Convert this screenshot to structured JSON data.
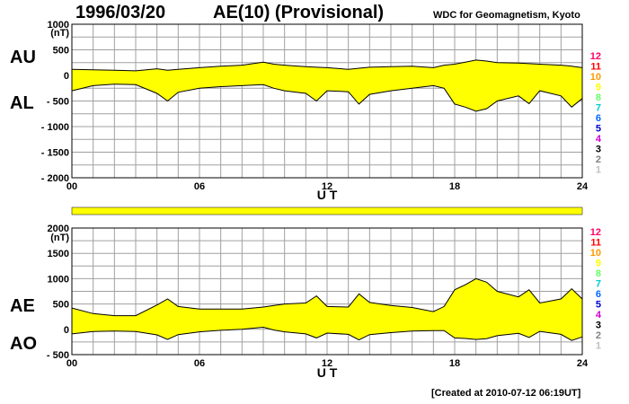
{
  "header": {
    "date": "1996/03/20",
    "title": "AE(10) (Provisional)",
    "source": "WDC for Geomagnetism, Kyoto"
  },
  "footer": {
    "created": "[Created at 2010-07-12 06:19UT]"
  },
  "colors": {
    "fill": "#ffff00",
    "grid": "#a0a0a0",
    "stations": [
      "#c0c0c0",
      "#808080",
      "#000000",
      "#cc00cc",
      "#0000cc",
      "#0066ff",
      "#00cccc",
      "#66ff66",
      "#ffff00",
      "#ff9900",
      "#ff0000",
      "#ff0066"
    ]
  },
  "chart_data": [
    {
      "type": "area",
      "unit": "(nT)",
      "upper_label": "AU",
      "lower_label": "AL",
      "xlabel": "U T",
      "xlim": [
        0,
        24
      ],
      "ylim": [
        -2000,
        1000
      ],
      "y_ticks": [
        "1000",
        "500",
        "0",
        "- 500",
        "- 1000",
        "- 1500",
        "- 2000"
      ],
      "x_ticks": [
        "00",
        "06",
        "12",
        "18",
        "24"
      ],
      "station_legend": [
        "12",
        "11",
        "10",
        "9",
        "8",
        "7",
        "6",
        "5",
        "4",
        "3",
        "2",
        "1"
      ],
      "x": [
        0,
        1,
        2,
        3,
        4,
        4.5,
        5,
        6,
        7,
        8,
        9,
        9.5,
        10,
        11,
        11.5,
        12,
        13,
        13.5,
        14,
        15,
        16,
        17,
        17.5,
        18,
        18.5,
        19,
        19.5,
        20,
        21,
        21.5,
        22,
        23,
        23.5,
        24
      ],
      "series": [
        {
          "name": "AU",
          "values": [
            120,
            110,
            100,
            90,
            130,
            100,
            120,
            150,
            180,
            200,
            260,
            220,
            200,
            170,
            160,
            150,
            120,
            140,
            160,
            170,
            180,
            150,
            200,
            220,
            260,
            300,
            280,
            250,
            240,
            230,
            220,
            200,
            180,
            150
          ]
        },
        {
          "name": "AL",
          "values": [
            -300,
            -200,
            -170,
            -180,
            -350,
            -500,
            -330,
            -250,
            -220,
            -200,
            -180,
            -250,
            -300,
            -350,
            -500,
            -300,
            -320,
            -560,
            -370,
            -300,
            -250,
            -200,
            -250,
            -560,
            -620,
            -700,
            -650,
            -500,
            -400,
            -550,
            -300,
            -400,
            -620,
            -450
          ]
        }
      ]
    },
    {
      "type": "area",
      "unit": "(nT)",
      "upper_label": "AE",
      "lower_label": "AO",
      "xlabel": "U T",
      "xlim": [
        0,
        24
      ],
      "ylim": [
        -500,
        2000
      ],
      "y_ticks": [
        "2000",
        "1500",
        "1000",
        "500",
        "0",
        "- 500"
      ],
      "x_ticks": [
        "00",
        "06",
        "12",
        "18",
        "24"
      ],
      "station_legend": [
        "12",
        "11",
        "10",
        "9",
        "8",
        "7",
        "6",
        "5",
        "4",
        "3",
        "2",
        "1"
      ],
      "x": [
        0,
        1,
        2,
        3,
        4,
        4.5,
        5,
        6,
        7,
        8,
        9,
        9.5,
        10,
        11,
        11.5,
        12,
        13,
        13.5,
        14,
        15,
        16,
        17,
        17.5,
        18,
        18.5,
        19,
        19.5,
        20,
        21,
        21.5,
        22,
        23,
        23.5,
        24
      ],
      "series": [
        {
          "name": "AE",
          "values": [
            420,
            310,
            270,
            270,
            480,
            600,
            450,
            400,
            400,
            400,
            440,
            470,
            500,
            520,
            660,
            450,
            440,
            700,
            530,
            470,
            430,
            350,
            450,
            780,
            880,
            1000,
            930,
            750,
            640,
            780,
            520,
            600,
            800,
            600
          ]
        },
        {
          "name": "AO",
          "values": [
            -90,
            -45,
            -35,
            -45,
            -110,
            -200,
            -105,
            -50,
            -20,
            0,
            40,
            -15,
            -50,
            -90,
            -170,
            -75,
            -100,
            -210,
            -105,
            -65,
            -35,
            -25,
            -25,
            -170,
            -180,
            -200,
            -185,
            -125,
            -80,
            -160,
            -40,
            -100,
            -220,
            -150
          ]
        }
      ]
    }
  ]
}
